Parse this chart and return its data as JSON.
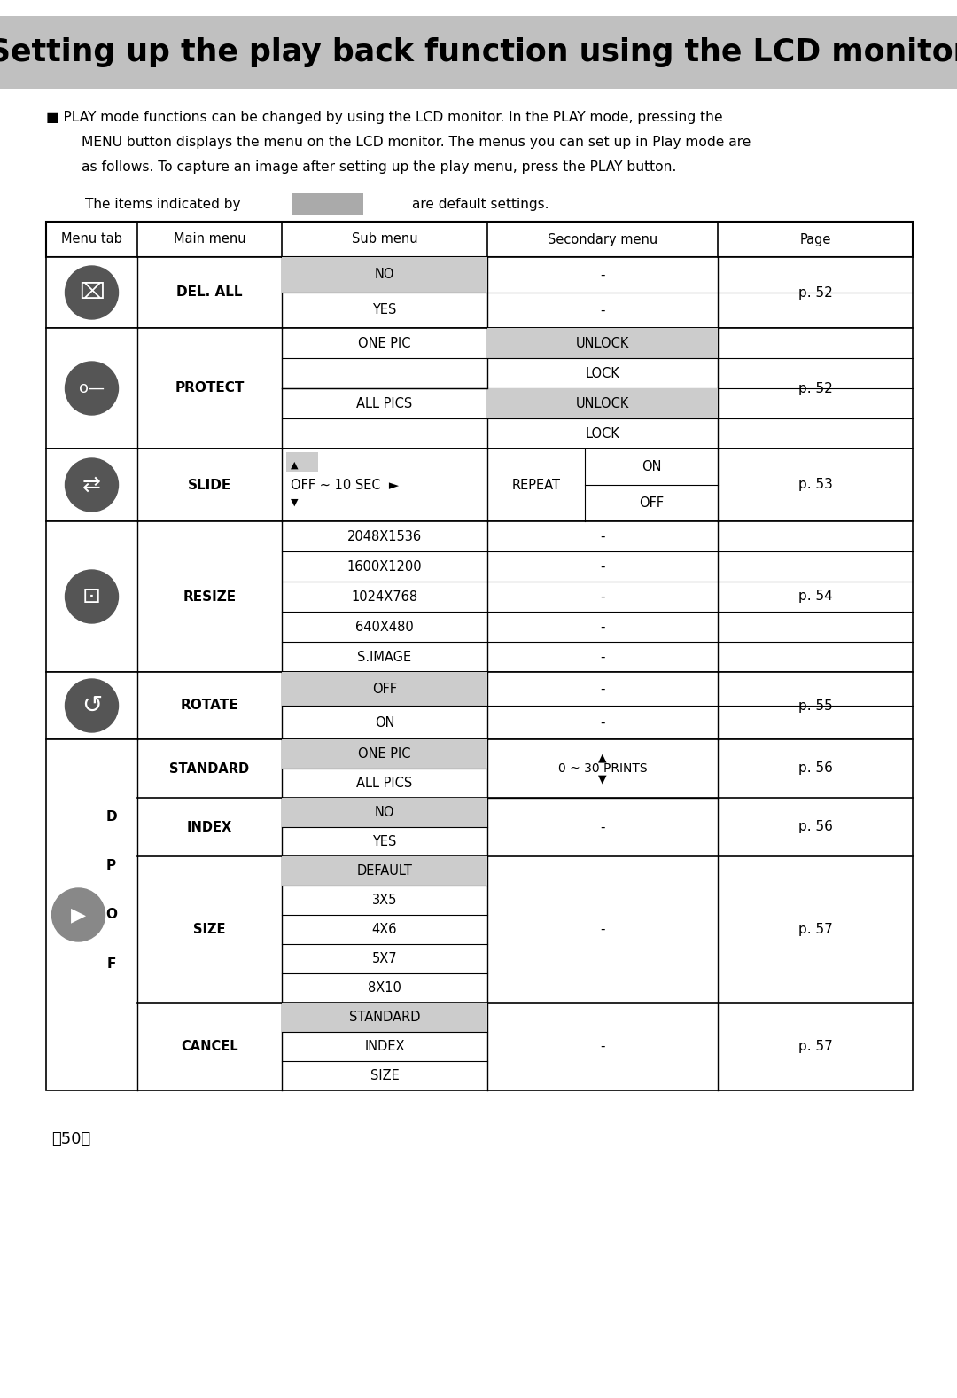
{
  "title": "Setting up the play back function using the LCD monitor",
  "title_bg": "#c0c0c0",
  "body_text1": "■ PLAY mode functions can be changed by using the LCD monitor. In the PLAY mode, pressing the",
  "body_text2": "MENU button displays the menu on the LCD monitor. The menus you can set up in Play mode are",
  "body_text3": "as follows. To capture an image after setting up the play menu, press the PLAY button.",
  "default_label_pre": "The items indicated by",
  "default_label_post": "are default settings.",
  "default_box_color": "#aaaaaa",
  "page_number": "〈50〉",
  "col_headers": [
    "Menu tab",
    "Main menu",
    "Sub menu",
    "Secondary menu",
    "Page"
  ],
  "white": "#ffffff",
  "gray_bg": "#c8c8c8",
  "light_gray": "#cccccc",
  "black": "#000000",
  "table_line_color": "#000000"
}
